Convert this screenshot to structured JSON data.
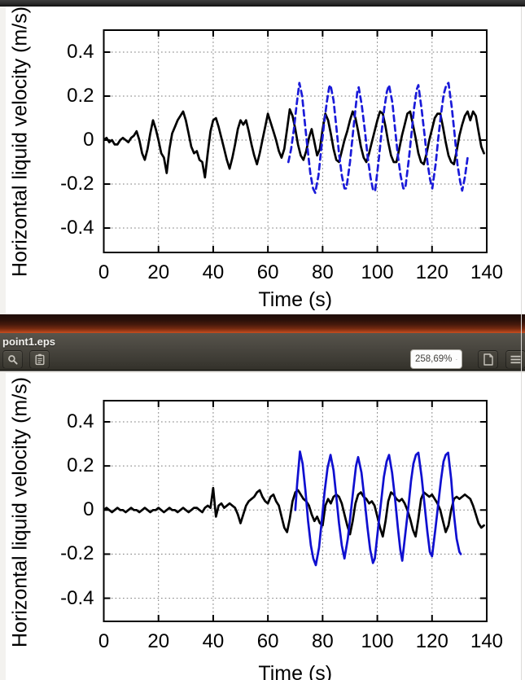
{
  "ui": {
    "window_title": "point1.eps",
    "toolbar": {
      "zoom_value": "258,69%",
      "buttons": [
        {
          "name": "search",
          "icon": "magnifier"
        },
        {
          "name": "annotations",
          "icon": "clipboard"
        },
        {
          "name": "zoom-level",
          "icon": "chevron-down"
        },
        {
          "name": "document-page",
          "icon": "page"
        },
        {
          "name": "menu",
          "icon": "hamburger"
        }
      ]
    }
  },
  "colors": {
    "curve_black": "#000000",
    "curve_blue_dashed": "#1a1ad9",
    "curve_blue_solid": "#0f0fd0",
    "grid": "#787878",
    "headerbar_bg": "#4a4740",
    "maroon_gradient_bottom": "#c24d1f"
  },
  "chart_data": [
    {
      "type": "line",
      "title": "",
      "xlabel": "Time (s)",
      "ylabel": "Horizontal liquid velocity (m/s)",
      "xlim": [
        0,
        140
      ],
      "ylim": [
        -0.5,
        0.5
      ],
      "grid": true,
      "legend": "none",
      "xticks": [
        0,
        20,
        40,
        60,
        80,
        100,
        120,
        140
      ],
      "xtick_labels": [
        "0",
        "20",
        "40",
        "60",
        "80",
        "100",
        "120",
        "140"
      ],
      "yticks": [
        0.4,
        0.2,
        0,
        -0.2,
        -0.4
      ],
      "ytick_labels": [
        "0.4",
        "0.2",
        "0",
        "-0.2",
        "-0.4"
      ],
      "series": [
        {
          "name": "black-solid",
          "color": "#000000",
          "style": "solid",
          "x_start": 0,
          "x_step": 1,
          "y": [
            0,
            0.01,
            -0.01,
            0,
            -0.02,
            -0.02,
            0,
            0.01,
            0,
            -0.01,
            0.01,
            0.02,
            0.04,
            0,
            -0.06,
            -0.09,
            -0.04,
            0.03,
            0.09,
            0.05,
            0,
            -0.06,
            -0.08,
            -0.15,
            -0.04,
            0.03,
            0.06,
            0.09,
            0.11,
            0.13,
            0.09,
            0.03,
            -0.03,
            -0.06,
            -0.05,
            -0.09,
            -0.1,
            -0.17,
            -0.06,
            0.04,
            0.09,
            0.1,
            0.06,
            0.01,
            -0.04,
            -0.09,
            -0.13,
            -0.08,
            -0.02,
            0.05,
            0.09,
            0.07,
            0.09,
            0.04,
            -0.02,
            -0.07,
            -0.11,
            -0.06,
            0,
            0.06,
            0.12,
            0.08,
            0.04,
            0,
            -0.05,
            -0.08,
            -0.04,
            0.05,
            0.14,
            0.11,
            0.05,
            -0.02,
            -0.07,
            -0.09,
            -0.05,
            0.01,
            0.05,
            -0.01,
            -0.07,
            -0.04,
            0.05,
            0.12,
            0.09,
            0.03,
            -0.04,
            -0.09,
            -0.1,
            -0.05,
            0,
            0.04,
            0.09,
            0.13,
            0.1,
            0.04,
            -0.03,
            -0.08,
            -0.1,
            -0.06,
            -0.01,
            0.04,
            0.09,
            0.13,
            0.12,
            0.06,
            -0.01,
            -0.07,
            -0.1,
            -0.1,
            -0.04,
            0.02,
            0.07,
            0.12,
            0.13,
            0.07,
            0.01,
            -0.06,
            -0.1,
            -0.11,
            -0.06,
            0,
            0.05,
            0.1,
            0.12,
            0.12,
            0.06,
            -0.01,
            -0.07,
            -0.1,
            -0.11,
            -0.05,
            0.02,
            0.07,
            0.11,
            0.13,
            0.09,
            0.13,
            0.11,
            0.04,
            -0.03,
            -0.06
          ]
        },
        {
          "name": "blue-dashed",
          "color": "#1a1ad9",
          "style": "dashed",
          "x": [
            67.5,
            68.5,
            69.5,
            70.5,
            71.5,
            72.5,
            73.5,
            74.5,
            75.5,
            76.5,
            77.3,
            78.5,
            79.5,
            80.5,
            81.5,
            82.4,
            82.9,
            84,
            85,
            86,
            87,
            88,
            88.7,
            90,
            91,
            92,
            92.7,
            93.2,
            94.3,
            95.5,
            96.5,
            97.5,
            98.5,
            99.2,
            100.5,
            101.5,
            102.5,
            103.5,
            104.3,
            105.5,
            106.5,
            107.5,
            108.5,
            109.5,
            110.2,
            111.5,
            112.5,
            113.5,
            114.4,
            115,
            116.2,
            117.3,
            118.3,
            119.3,
            120.1,
            121.3,
            122.3,
            123.3,
            124.3,
            125.2,
            126,
            127.2,
            128.3,
            129.3,
            130.3,
            131,
            132,
            133
          ],
          "y": [
            -0.1,
            -0.04,
            0.05,
            0.16,
            0.26,
            0.2,
            0.08,
            -0.04,
            -0.15,
            -0.22,
            -0.24,
            -0.16,
            -0.04,
            0.07,
            0.17,
            0.24,
            0.25,
            0.18,
            0.06,
            -0.06,
            -0.16,
            -0.22,
            -0.22,
            -0.1,
            0.02,
            0.14,
            0.22,
            0.24,
            0.16,
            0.04,
            -0.08,
            -0.17,
            -0.23,
            -0.23,
            -0.09,
            0.03,
            0.14,
            0.22,
            0.25,
            0.17,
            0.05,
            -0.07,
            -0.16,
            -0.22,
            -0.22,
            -0.09,
            0.03,
            0.15,
            0.23,
            0.25,
            0.14,
            0.02,
            -0.1,
            -0.18,
            -0.22,
            -0.11,
            0.01,
            0.12,
            0.21,
            0.25,
            0.26,
            0.15,
            0.02,
            -0.11,
            -0.19,
            -0.23,
            -0.17,
            -0.08
          ]
        }
      ]
    },
    {
      "type": "line",
      "title": "",
      "xlabel": "Time (s)",
      "ylabel": "Horizontal liquid velocity (m/s)",
      "xlim": [
        0,
        140
      ],
      "ylim": [
        -0.5,
        0.5
      ],
      "grid": true,
      "legend": "none",
      "xticks": [
        0,
        20,
        40,
        60,
        80,
        100,
        120,
        140
      ],
      "xtick_labels": [
        "0",
        "20",
        "40",
        "60",
        "80",
        "100",
        "120",
        "140"
      ],
      "yticks": [
        0.4,
        0.2,
        0,
        -0.2,
        -0.4
      ],
      "ytick_labels": [
        "0.4",
        "0.2",
        "0",
        "-0.2",
        "-0.4"
      ],
      "series": [
        {
          "name": "black-solid",
          "color": "#000000",
          "style": "solid",
          "x_start": 0,
          "x_step": 1,
          "y": [
            0,
            0.01,
            0,
            -0.01,
            0,
            0.01,
            0,
            0,
            -0.01,
            0,
            0.01,
            0,
            0,
            -0.01,
            0,
            0.01,
            0,
            -0.01,
            0,
            0,
            0.01,
            0,
            -0.01,
            0,
            0.01,
            0,
            0,
            -0.01,
            0,
            0.01,
            0,
            -0.01,
            0,
            0.01,
            0.01,
            0,
            -0.01,
            0.01,
            0.02,
            0.01,
            0.1,
            -0.03,
            0.02,
            0.03,
            0.01,
            0.02,
            0.03,
            0.02,
            0.01,
            -0.02,
            -0.06,
            -0.02,
            0.02,
            0.04,
            0.05,
            0.06,
            0.08,
            0.09,
            0.06,
            0.04,
            0.03,
            0.06,
            0.07,
            0.04,
            0.02,
            -0.03,
            -0.08,
            -0.1,
            -0.04,
            0.04,
            0.08,
            0.09,
            0.07,
            0.05,
            0.04,
            0.02,
            -0.02,
            -0.05,
            -0.03,
            -0.06,
            -0.07,
            0.02,
            0.05,
            0.03,
            0.06,
            0.07,
            0.06,
            0.03,
            -0.02,
            -0.07,
            -0.11,
            -0.05,
            0.03,
            0.07,
            0.08,
            0.06,
            0.05,
            0.03,
            0.04,
            0.02,
            -0.03,
            -0.08,
            -0.12,
            -0.05,
            0.04,
            0.08,
            0.07,
            0.05,
            0.04,
            0.05,
            0.03,
            0,
            -0.04,
            -0.09,
            -0.12,
            -0.04,
            0.05,
            0.08,
            0.07,
            0.06,
            0.07,
            0.05,
            0.03,
            0,
            -0.05,
            -0.1,
            -0.07,
            0,
            0.05,
            0.06,
            0.05,
            0.06,
            0.07,
            0.06,
            0.05,
            0.02,
            -0.02,
            -0.06,
            -0.08,
            -0.07
          ]
        },
        {
          "name": "blue-solid",
          "color": "#0f0fd0",
          "style": "solid",
          "x": [
            70,
            70.7,
            71.7,
            72.7,
            73.7,
            74.7,
            75.7,
            76.6,
            77.5,
            78.7,
            79.7,
            80.7,
            81.8,
            82.9,
            84,
            85,
            86,
            87,
            88,
            89.2,
            90.3,
            91.3,
            92.2,
            93,
            94.2,
            95.4,
            96.4,
            97.4,
            98.4,
            99.1,
            100.3,
            101.4,
            102.4,
            103.4,
            104.3,
            105.4,
            106.5,
            107.5,
            108.4,
            109.1,
            110.3,
            111.4,
            112.3,
            113.2,
            114.1,
            115,
            116.2,
            117.3,
            118.3,
            119.2,
            120,
            121.2,
            122.3,
            123.3,
            124.2,
            125,
            125.9,
            127,
            128,
            129,
            130,
            130.5
          ],
          "y": [
            0,
            0.12,
            0.265,
            0.21,
            0.09,
            -0.05,
            -0.16,
            -0.22,
            -0.25,
            -0.17,
            -0.05,
            0.08,
            0.19,
            0.25,
            0.18,
            0.06,
            -0.06,
            -0.16,
            -0.22,
            -0.13,
            -0.01,
            0.1,
            0.2,
            0.24,
            0.17,
            0.04,
            -0.08,
            -0.18,
            -0.24,
            -0.22,
            -0.08,
            0.04,
            0.15,
            0.22,
            0.25,
            0.17,
            0.05,
            -0.08,
            -0.18,
            -0.23,
            -0.1,
            0.02,
            0.13,
            0.21,
            0.25,
            0.26,
            0.15,
            0.02,
            -0.1,
            -0.19,
            -0.21,
            -0.09,
            0.03,
            0.14,
            0.22,
            0.25,
            0.26,
            0.14,
            -0.02,
            -0.13,
            -0.19,
            -0.2
          ]
        }
      ]
    }
  ]
}
